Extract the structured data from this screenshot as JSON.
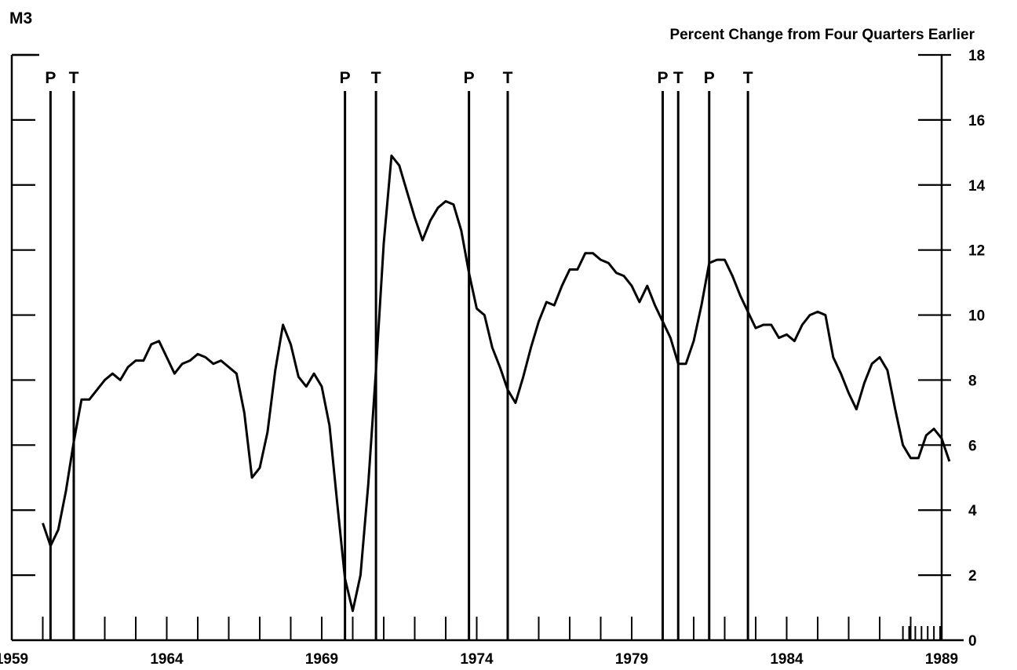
{
  "chart_data": {
    "type": "line",
    "title": "M3",
    "ylabel": "Percent Change from Four Quarters Earlier",
    "xlabel": "",
    "xlim": [
      1959.0,
      1989.0
    ],
    "ylim": [
      0,
      18
    ],
    "y_ticks": [
      "0",
      "2",
      "4",
      "6",
      "8",
      "10",
      "12",
      "14",
      "16",
      "18"
    ],
    "y_tick_values": [
      0,
      2,
      4,
      6,
      8,
      10,
      12,
      14,
      16,
      18
    ],
    "x_tick_labels": [
      "1959",
      "1964",
      "1969",
      "1974",
      "1979",
      "1984",
      "1989"
    ],
    "x_tick_values": [
      1959,
      1964,
      1969,
      1974,
      1979,
      1984,
      1989
    ],
    "grid": false,
    "legend": "none",
    "line_color": "#000000",
    "recession_markers": [
      {
        "label": "P",
        "x": 1960.25
      },
      {
        "label": "T",
        "x": 1961.0
      },
      {
        "label": "P",
        "x": 1969.75
      },
      {
        "label": "T",
        "x": 1970.75
      },
      {
        "label": "P",
        "x": 1973.75
      },
      {
        "label": "T",
        "x": 1975.0
      },
      {
        "label": "P",
        "x": 1980.0
      },
      {
        "label": "T",
        "x": 1980.5
      },
      {
        "label": "P",
        "x": 1981.5
      },
      {
        "label": "T",
        "x": 1982.75
      }
    ],
    "series": [
      {
        "values": [
          [
            1960.0,
            3.6
          ],
          [
            1960.25,
            2.9
          ],
          [
            1960.5,
            3.4
          ],
          [
            1960.75,
            4.6
          ],
          [
            1961.0,
            6.1
          ],
          [
            1961.25,
            7.4
          ],
          [
            1961.5,
            7.4
          ],
          [
            1961.75,
            7.7
          ],
          [
            1962.0,
            8.0
          ],
          [
            1962.25,
            8.2
          ],
          [
            1962.5,
            8.0
          ],
          [
            1962.75,
            8.4
          ],
          [
            1963.0,
            8.6
          ],
          [
            1963.25,
            8.6
          ],
          [
            1963.5,
            9.1
          ],
          [
            1963.75,
            9.2
          ],
          [
            1964.0,
            8.7
          ],
          [
            1964.25,
            8.2
          ],
          [
            1964.5,
            8.5
          ],
          [
            1964.75,
            8.6
          ],
          [
            1965.0,
            8.8
          ],
          [
            1965.25,
            8.7
          ],
          [
            1965.5,
            8.5
          ],
          [
            1965.75,
            8.6
          ],
          [
            1966.0,
            8.4
          ],
          [
            1966.25,
            8.2
          ],
          [
            1966.5,
            7.0
          ],
          [
            1966.75,
            5.0
          ],
          [
            1967.0,
            5.3
          ],
          [
            1967.25,
            6.4
          ],
          [
            1967.5,
            8.3
          ],
          [
            1967.75,
            9.7
          ],
          [
            1968.0,
            9.1
          ],
          [
            1968.25,
            8.1
          ],
          [
            1968.5,
            7.8
          ],
          [
            1968.75,
            8.2
          ],
          [
            1969.0,
            7.8
          ],
          [
            1969.25,
            6.6
          ],
          [
            1969.5,
            4.2
          ],
          [
            1969.75,
            1.9
          ],
          [
            1970.0,
            0.9
          ],
          [
            1970.25,
            2.0
          ],
          [
            1970.5,
            4.8
          ],
          [
            1970.75,
            8.3
          ],
          [
            1971.0,
            12.2
          ],
          [
            1971.25,
            14.9
          ],
          [
            1971.5,
            14.6
          ],
          [
            1971.75,
            13.8
          ],
          [
            1972.0,
            13.0
          ],
          [
            1972.25,
            12.3
          ],
          [
            1972.5,
            12.9
          ],
          [
            1972.75,
            13.3
          ],
          [
            1973.0,
            13.5
          ],
          [
            1973.25,
            13.4
          ],
          [
            1973.5,
            12.6
          ],
          [
            1973.75,
            11.3
          ],
          [
            1974.0,
            10.2
          ],
          [
            1974.25,
            10.0
          ],
          [
            1974.5,
            9.0
          ],
          [
            1974.75,
            8.4
          ],
          [
            1975.0,
            7.7
          ],
          [
            1975.25,
            7.3
          ],
          [
            1975.5,
            8.1
          ],
          [
            1975.75,
            9.0
          ],
          [
            1976.0,
            9.8
          ],
          [
            1976.25,
            10.4
          ],
          [
            1976.5,
            10.3
          ],
          [
            1976.75,
            10.9
          ],
          [
            1977.0,
            11.4
          ],
          [
            1977.25,
            11.4
          ],
          [
            1977.5,
            11.9
          ],
          [
            1977.75,
            11.9
          ],
          [
            1978.0,
            11.7
          ],
          [
            1978.25,
            11.6
          ],
          [
            1978.5,
            11.3
          ],
          [
            1978.75,
            11.2
          ],
          [
            1979.0,
            10.9
          ],
          [
            1979.25,
            10.4
          ],
          [
            1979.5,
            10.9
          ],
          [
            1979.75,
            10.3
          ],
          [
            1980.0,
            9.8
          ],
          [
            1980.25,
            9.3
          ],
          [
            1980.5,
            8.5
          ],
          [
            1980.75,
            8.5
          ],
          [
            1981.0,
            9.2
          ],
          [
            1981.25,
            10.3
          ],
          [
            1981.5,
            11.6
          ],
          [
            1981.75,
            11.7
          ],
          [
            1982.0,
            11.7
          ],
          [
            1982.25,
            11.2
          ],
          [
            1982.5,
            10.6
          ],
          [
            1982.75,
            10.1
          ],
          [
            1983.0,
            9.6
          ],
          [
            1983.25,
            9.7
          ],
          [
            1983.5,
            9.7
          ],
          [
            1983.75,
            9.3
          ],
          [
            1984.0,
            9.4
          ],
          [
            1984.25,
            9.2
          ],
          [
            1984.5,
            9.7
          ],
          [
            1984.75,
            10.0
          ],
          [
            1985.0,
            10.1
          ],
          [
            1985.25,
            10.0
          ],
          [
            1985.5,
            8.7
          ],
          [
            1985.75,
            8.2
          ],
          [
            1986.0,
            7.6
          ],
          [
            1986.25,
            7.1
          ],
          [
            1986.5,
            7.9
          ],
          [
            1986.75,
            8.5
          ],
          [
            1987.0,
            8.7
          ],
          [
            1987.25,
            8.3
          ],
          [
            1987.5,
            7.1
          ],
          [
            1987.75,
            6.0
          ],
          [
            1988.0,
            5.6
          ],
          [
            1988.25,
            5.6
          ],
          [
            1988.5,
            6.3
          ],
          [
            1988.75,
            6.5
          ],
          [
            1989.0,
            6.2
          ],
          [
            1989.25,
            5.5
          ]
        ]
      }
    ]
  }
}
